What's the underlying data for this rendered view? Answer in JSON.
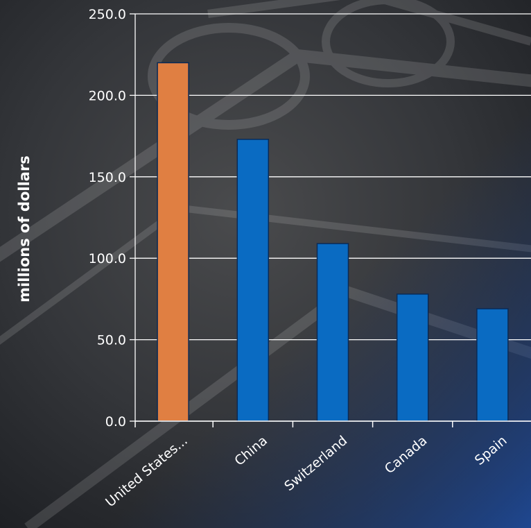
{
  "chart_data": {
    "type": "bar",
    "title": "",
    "xlabel": "",
    "ylabel": "millions of dollars",
    "ylim": [
      0,
      250
    ],
    "yticks": [
      "0.0",
      "50.0",
      "100.0",
      "150.0",
      "200.0",
      "250.0"
    ],
    "categories": [
      "United States...",
      "China",
      "Switzerland",
      "Canada",
      "Spain"
    ],
    "values": [
      220,
      173,
      109,
      78,
      69
    ],
    "bar_colors": [
      "#E07F42",
      "#0A6BC2",
      "#0A6BC2",
      "#0A6BC2",
      "#0A6BC2"
    ],
    "grid": true,
    "legend": "none"
  },
  "colors": {
    "background_dark": "#2a2c30",
    "background_blue": "#243a6b",
    "gridline": "#ffffff",
    "text": "#ffffff",
    "bar_outline": "#0b2a55"
  }
}
